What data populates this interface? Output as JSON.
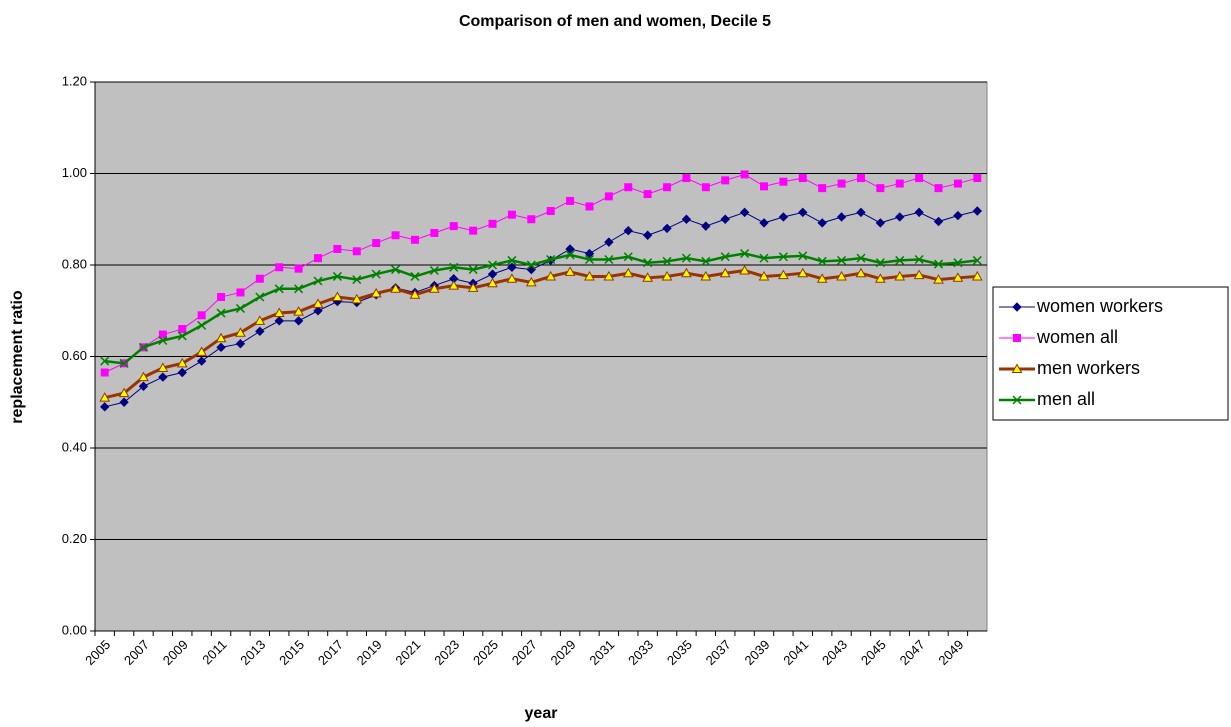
{
  "chart_data": {
    "type": "line",
    "title": "Comparison of men and women, Decile 5",
    "x_label": "year",
    "y_label": "replacement ratio",
    "categories": [
      "2005",
      null,
      "2007",
      null,
      "2009",
      null,
      "2011",
      null,
      "2013",
      null,
      "2015",
      null,
      "2017",
      null,
      "2019",
      null,
      "2021",
      null,
      "2023",
      null,
      "2025",
      null,
      "2027",
      null,
      "2029",
      null,
      "2031",
      null,
      "2033",
      null,
      "2035",
      null,
      "2037",
      null,
      "2039",
      null,
      "2041",
      null,
      "2043",
      null,
      "2045",
      null,
      "2047",
      null,
      "2049",
      null
    ],
    "ylim": [
      0,
      1.2
    ],
    "yticks": [
      {
        "value": 0,
        "label": "0.00"
      },
      {
        "value": 0.2,
        "label": "0.20"
      },
      {
        "value": 0.4,
        "label": "0.40"
      },
      {
        "value": 0.6,
        "label": "0.60"
      },
      {
        "value": 0.8,
        "label": "0.80"
      },
      {
        "value": 1.0,
        "label": "1.00"
      },
      {
        "value": 1.2,
        "label": "1.20"
      }
    ],
    "grid": true,
    "legend": "right",
    "plot_background": "#c0c0c0",
    "series": [
      {
        "name": "women workers",
        "color": "#000080",
        "marker": "diamond",
        "marker_fill": "#000080",
        "line_width": 1,
        "values": [
          0.49,
          0.5,
          0.535,
          0.555,
          0.565,
          0.59,
          0.62,
          0.628,
          0.655,
          0.678,
          0.678,
          0.7,
          0.72,
          0.718,
          0.735,
          0.75,
          0.74,
          0.755,
          0.77,
          0.76,
          0.78,
          0.795,
          0.79,
          0.81,
          0.835,
          0.825,
          0.85,
          0.875,
          0.865,
          0.88,
          0.9,
          0.885,
          0.9,
          0.915,
          0.892,
          0.905,
          0.915,
          0.892,
          0.905,
          0.915,
          0.892,
          0.905,
          0.915,
          0.895,
          0.908,
          0.918
        ]
      },
      {
        "name": "women all",
        "color": "#ff00ff",
        "marker": "square",
        "marker_fill": "#ff00ff",
        "line_width": 1,
        "values": [
          0.565,
          0.585,
          0.62,
          0.648,
          0.66,
          0.69,
          0.73,
          0.74,
          0.77,
          0.795,
          0.792,
          0.815,
          0.835,
          0.83,
          0.848,
          0.865,
          0.855,
          0.87,
          0.885,
          0.875,
          0.89,
          0.91,
          0.9,
          0.918,
          0.94,
          0.928,
          0.95,
          0.97,
          0.955,
          0.97,
          0.99,
          0.97,
          0.985,
          0.998,
          0.972,
          0.982,
          0.99,
          0.968,
          0.978,
          0.99,
          0.968,
          0.978,
          0.99,
          0.968,
          0.978,
          0.99
        ]
      },
      {
        "name": "men workers",
        "color": "#993300",
        "marker": "triangle",
        "marker_fill": "#ffff00",
        "line_width": 3,
        "values": [
          0.51,
          0.52,
          0.555,
          0.575,
          0.585,
          0.61,
          0.64,
          0.652,
          0.678,
          0.695,
          0.698,
          0.715,
          0.73,
          0.725,
          0.738,
          0.748,
          0.735,
          0.748,
          0.755,
          0.75,
          0.76,
          0.77,
          0.762,
          0.775,
          0.785,
          0.775,
          0.775,
          0.782,
          0.772,
          0.775,
          0.782,
          0.775,
          0.782,
          0.788,
          0.775,
          0.778,
          0.782,
          0.77,
          0.775,
          0.782,
          0.77,
          0.775,
          0.778,
          0.768,
          0.772,
          0.775
        ]
      },
      {
        "name": "men all",
        "color": "#008000",
        "marker": "x",
        "marker_fill": "#008000",
        "line_width": 2.5,
        "values": [
          0.59,
          0.585,
          0.62,
          0.635,
          0.645,
          0.668,
          0.695,
          0.705,
          0.73,
          0.748,
          0.748,
          0.765,
          0.775,
          0.768,
          0.78,
          0.79,
          0.775,
          0.788,
          0.795,
          0.79,
          0.8,
          0.81,
          0.8,
          0.812,
          0.822,
          0.812,
          0.812,
          0.818,
          0.805,
          0.808,
          0.815,
          0.808,
          0.818,
          0.825,
          0.815,
          0.818,
          0.82,
          0.808,
          0.81,
          0.815,
          0.805,
          0.81,
          0.812,
          0.802,
          0.805,
          0.81
        ]
      }
    ]
  }
}
